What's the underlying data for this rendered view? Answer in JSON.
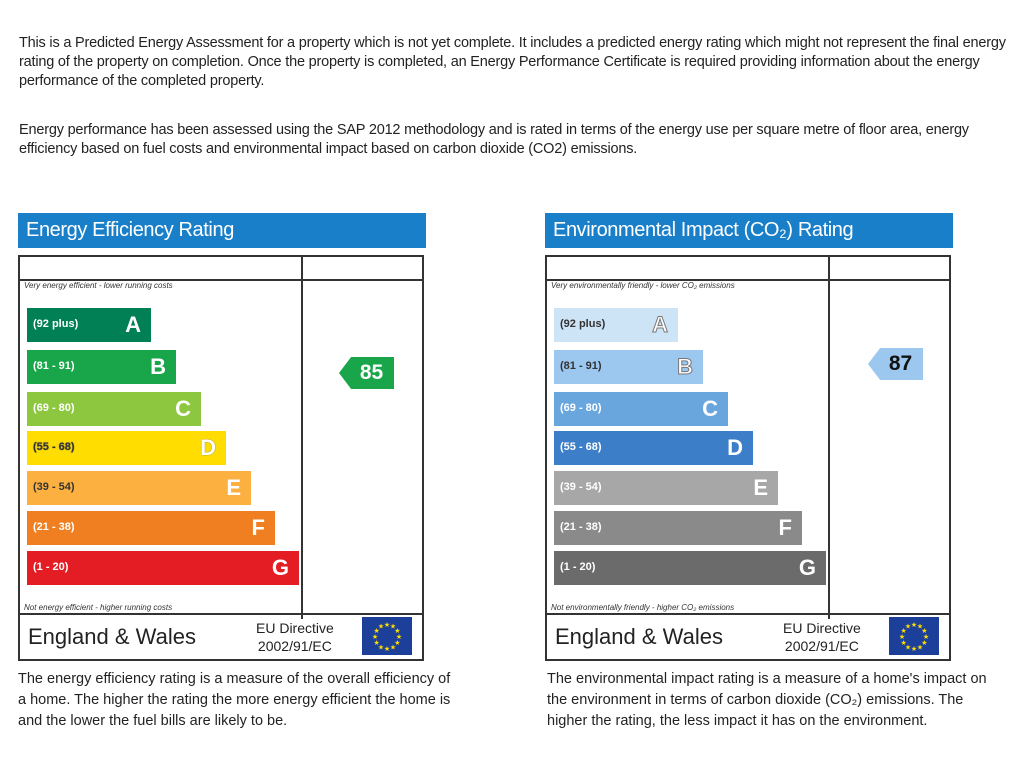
{
  "intro": {
    "p1": "This is a Predicted Energy Assessment for a property which is not yet complete. It includes a predicted energy rating which might not represent the final energy rating of the property on completion. Once the property is completed, an Energy Performance Certificate is required providing information about the energy performance of the completed property.",
    "p2": "Energy performance has been assessed using the SAP 2012 methodology and is rated in terms of the energy use per square metre of floor area, energy efficiency based on fuel costs and environmental impact based on carbon dioxide (CO2) emissions."
  },
  "efficiency": {
    "title": "Energy Efficiency Rating",
    "header_color": "#1a7fc9",
    "top_note": "Very energy efficient - lower running costs",
    "bottom_note": "Not energy efficient - higher running costs",
    "bands": [
      {
        "range": "(92 plus)",
        "letter": "A",
        "color": "#008054"
      },
      {
        "range": "(81 - 91)",
        "letter": "B",
        "color": "#19a54a"
      },
      {
        "range": "(69 - 80)",
        "letter": "C",
        "color": "#8dc63f"
      },
      {
        "range": "(55 - 68)",
        "letter": "D",
        "color": "#ffdd00"
      },
      {
        "range": "(39 - 54)",
        "letter": "E",
        "color": "#fcb040"
      },
      {
        "range": "(21 - 38)",
        "letter": "F",
        "color": "#f07f22"
      },
      {
        "range": "(1 - 20)",
        "letter": "G",
        "color": "#e31d23"
      }
    ],
    "current_rating": "85",
    "rating_color": "#19a54a",
    "region": "England & Wales",
    "directive_line1": "EU Directive",
    "directive_line2": "2002/91/EC",
    "description": "The energy efficiency rating is a measure of the overall efficiency of a home. The higher the rating the more energy efficient the home is and the lower the fuel bills are likely to be."
  },
  "environmental": {
    "title": "Environmental Impact (CO₂) Rating",
    "header_color": "#1a7fc9",
    "top_note": "Very environmentally friendly - lower CO₂ emissions",
    "bottom_note": "Not environmentally friendly - higher CO₂ emissions",
    "bands": [
      {
        "range": "(92 plus)",
        "letter": "A",
        "color": "#cde3f6"
      },
      {
        "range": "(81 - 91)",
        "letter": "B",
        "color": "#9cc7ef"
      },
      {
        "range": "(69 - 80)",
        "letter": "C",
        "color": "#6aa6de"
      },
      {
        "range": "(55 - 68)",
        "letter": "D",
        "color": "#3c7ec7"
      },
      {
        "range": "(39 - 54)",
        "letter": "E",
        "color": "#a7a7a7"
      },
      {
        "range": "(21 - 38)",
        "letter": "F",
        "color": "#8a8a8a"
      },
      {
        "range": "(1 - 20)",
        "letter": "G",
        "color": "#6b6b6b"
      }
    ],
    "current_rating": "87",
    "rating_color": "#9cc7ef",
    "region": "England & Wales",
    "directive_line1": "EU Directive",
    "directive_line2": "2002/91/EC",
    "description": "The environmental impact rating is a measure of a home's impact on the environment in terms of carbon dioxide (CO₂) emissions. The higher the rating, the less impact it has on the environment."
  }
}
